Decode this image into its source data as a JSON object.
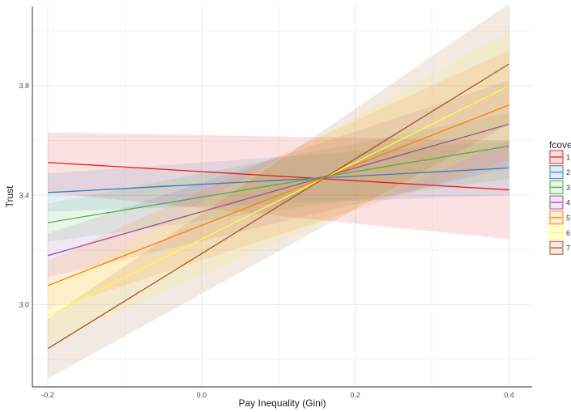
{
  "chart_data": {
    "type": "line",
    "title": "",
    "xlabel": "Pay Inequality (Gini)",
    "ylabel": "Trust",
    "xlim": [
      -0.22,
      0.43
    ],
    "ylim": [
      2.7,
      4.09
    ],
    "x_ticks": [
      "-0.2",
      "0.0",
      "0.2",
      "0.4"
    ],
    "y_ticks": [
      "3.0",
      "3.4",
      "3.8"
    ],
    "grid": true,
    "legend": {
      "title": "fcover",
      "placement": "right"
    },
    "x": [
      -0.2,
      0.4
    ],
    "series": [
      {
        "name": "1",
        "color": "#e41a1c",
        "values": [
          3.52,
          3.42
        ],
        "lower": [
          3.41,
          3.24
        ],
        "upper": [
          3.63,
          3.6
        ]
      },
      {
        "name": "2",
        "color": "#377eb8",
        "values": [
          3.41,
          3.5
        ],
        "lower": [
          3.34,
          3.4
        ],
        "upper": [
          3.48,
          3.6
        ]
      },
      {
        "name": "3",
        "color": "#4daf4a",
        "values": [
          3.3,
          3.58
        ],
        "lower": [
          3.23,
          3.46
        ],
        "upper": [
          3.37,
          3.7
        ]
      },
      {
        "name": "4",
        "color": "#984ea3",
        "values": [
          3.18,
          3.66
        ],
        "lower": [
          3.1,
          3.5
        ],
        "upper": [
          3.26,
          3.82
        ]
      },
      {
        "name": "5",
        "color": "#ff7f00",
        "values": [
          3.07,
          3.73
        ],
        "lower": [
          2.98,
          3.53
        ],
        "upper": [
          3.16,
          3.93
        ]
      },
      {
        "name": "6",
        "color": "#ffff33",
        "values": [
          2.96,
          3.8
        ],
        "lower": [
          2.86,
          3.6
        ],
        "upper": [
          3.06,
          4.0
        ]
      },
      {
        "name": "7",
        "color": "#a65628",
        "values": [
          2.84,
          3.88
        ],
        "lower": [
          2.73,
          3.66
        ],
        "upper": [
          2.95,
          4.1
        ]
      }
    ]
  }
}
